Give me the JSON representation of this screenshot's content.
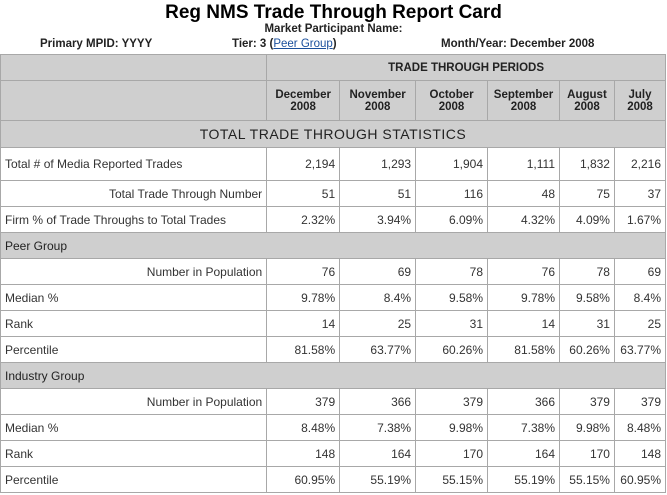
{
  "title": "Reg NMS Trade Through Report Card",
  "participant_label": "Market Participant Name:",
  "mpid": "Primary MPID: YYYY",
  "tier_prefix": "Tier: 3 (",
  "tier_link": "Peer Group",
  "tier_suffix": ")",
  "month_year": "Month/Year:  December 2008",
  "periods_header": "TRADE THROUGH PERIODS",
  "periods": [
    [
      "December",
      "2008"
    ],
    [
      "November",
      "2008"
    ],
    [
      "October",
      "2008"
    ],
    [
      "September",
      "2008"
    ],
    [
      "August",
      "2008"
    ],
    [
      "July",
      "2008"
    ]
  ],
  "stats_header": "TOTAL TRADE THROUGH STATISTICS",
  "firm_rows": [
    {
      "label": "Total # of Media Reported Trades",
      "align": "left",
      "values": [
        "2,194",
        "1,293",
        "1,904",
        "1,111",
        "1,832",
        "2,216"
      ]
    },
    {
      "label": "Total Trade Through Number",
      "align": "right",
      "values": [
        "51",
        "51",
        "116",
        "48",
        "75",
        "37"
      ]
    },
    {
      "label": "Firm % of Trade Throughs to Total Trades",
      "align": "left",
      "values": [
        "2.32%",
        "3.94%",
        "6.09%",
        "4.32%",
        "4.09%",
        "1.67%"
      ]
    }
  ],
  "groups": [
    {
      "name": "Peer Group",
      "rows": [
        {
          "label": "Number in Population",
          "align": "right",
          "values": [
            "76",
            "69",
            "78",
            "76",
            "78",
            "69"
          ]
        },
        {
          "label": "Median %",
          "align": "left",
          "values": [
            "9.78%",
            "8.4%",
            "9.58%",
            "9.78%",
            "9.58%",
            "8.4%"
          ]
        },
        {
          "label": "Rank",
          "align": "left",
          "values": [
            "14",
            "25",
            "31",
            "14",
            "31",
            "25"
          ]
        },
        {
          "label": "Percentile",
          "align": "left",
          "values": [
            "81.58%",
            "63.77%",
            "60.26%",
            "81.58%",
            "60.26%",
            "63.77%"
          ]
        }
      ]
    },
    {
      "name": "Industry Group",
      "rows": [
        {
          "label": "Number in Population",
          "align": "right",
          "values": [
            "379",
            "366",
            "379",
            "366",
            "379",
            "379"
          ]
        },
        {
          "label": "Median %",
          "align": "left",
          "values": [
            "8.48%",
            "7.38%",
            "9.98%",
            "7.38%",
            "9.98%",
            "8.48%"
          ]
        },
        {
          "label": "Rank",
          "align": "left",
          "values": [
            "148",
            "164",
            "170",
            "164",
            "170",
            "148"
          ]
        },
        {
          "label": "Percentile",
          "align": "left",
          "values": [
            "60.95%",
            "55.19%",
            "55.15%",
            "55.19%",
            "55.15%",
            "60.95%"
          ]
        }
      ]
    }
  ]
}
